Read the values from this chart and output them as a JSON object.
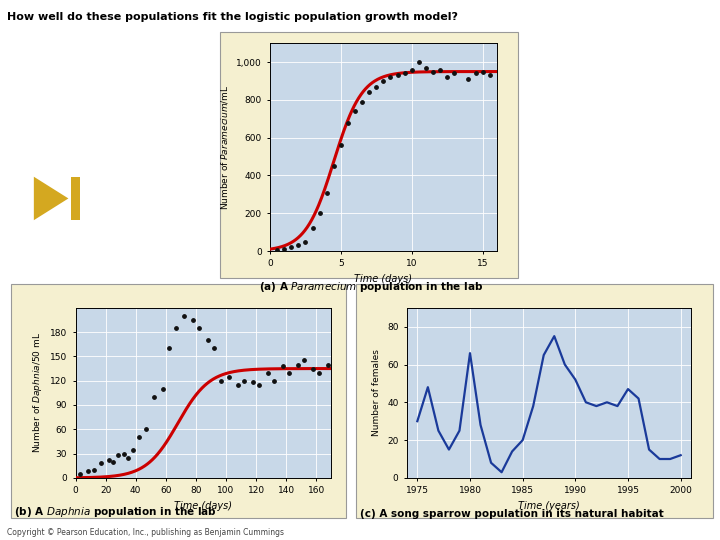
{
  "title": "How well do these populations fit the logistic population growth model?",
  "copyright": "Copyright © Pearson Education, Inc., publishing as Benjamin Cummings",
  "panel_a": {
    "caption_prefix": "(a) A ",
    "caption_italic": "Paramecium",
    "caption_suffix": " population in the lab",
    "xlabel": "Time (days)",
    "ylabel_prefix": "Number of ",
    "ylabel_italic": "Paramecium",
    "ylabel_suffix": "/mL",
    "xlim": [
      0,
      16
    ],
    "ylim": [
      0,
      1100
    ],
    "xticks": [
      0,
      5,
      10,
      15
    ],
    "yticks": [
      0,
      200,
      400,
      600,
      800,
      1000
    ],
    "yticklabels": [
      "0",
      "200",
      "400",
      "600",
      "800",
      "1,000"
    ],
    "K": 950,
    "r": 1.0,
    "t0": 4.5,
    "scatter_x": [
      0.5,
      1.0,
      1.5,
      2.0,
      2.5,
      3.0,
      3.5,
      4.0,
      4.5,
      5.0,
      5.5,
      6.0,
      6.5,
      7.0,
      7.5,
      8.0,
      8.5,
      9.0,
      9.5,
      10.0,
      10.5,
      11.0,
      11.5,
      12.0,
      12.5,
      13.0,
      14.0,
      14.5,
      15.0,
      15.5
    ],
    "scatter_y": [
      5,
      10,
      20,
      30,
      50,
      120,
      200,
      310,
      450,
      560,
      680,
      740,
      790,
      840,
      870,
      900,
      920,
      930,
      940,
      960,
      1000,
      970,
      950,
      960,
      920,
      940,
      910,
      940,
      950,
      930
    ],
    "plot_bg_color": "#c8d8e8",
    "outer_bg_color": "#f5f0d0",
    "curve_color": "#cc0000",
    "dot_color": "#111111"
  },
  "panel_b": {
    "caption_prefix": "(b) A ",
    "caption_italic": "Daphnia",
    "caption_suffix": " population in the lab",
    "xlabel": "Time (days)",
    "ylabel_prefix": "Number of ",
    "ylabel_italic": "Daphnia",
    "ylabel_suffix": "/50 mL",
    "xlim": [
      0,
      170
    ],
    "ylim": [
      0,
      210
    ],
    "xticks": [
      0,
      20,
      40,
      60,
      80,
      100,
      120,
      140,
      160
    ],
    "yticks": [
      0,
      30,
      60,
      90,
      120,
      150,
      180
    ],
    "K": 135,
    "r": 0.095,
    "t0": 68,
    "scatter_x": [
      3,
      8,
      12,
      17,
      22,
      25,
      28,
      32,
      35,
      38,
      42,
      47,
      52,
      58,
      62,
      67,
      72,
      78,
      82,
      88,
      92,
      97,
      102,
      108,
      112,
      118,
      122,
      128,
      132,
      138,
      142,
      148,
      152,
      158,
      162,
      168
    ],
    "scatter_y": [
      5,
      8,
      10,
      18,
      22,
      20,
      28,
      30,
      25,
      35,
      50,
      60,
      100,
      110,
      160,
      185,
      200,
      195,
      185,
      170,
      160,
      120,
      125,
      115,
      120,
      118,
      115,
      130,
      120,
      138,
      130,
      140,
      145,
      135,
      130,
      140
    ],
    "plot_bg_color": "#c8d8e8",
    "outer_bg_color": "#f5f0d0",
    "curve_color": "#cc0000",
    "dot_color": "#111111"
  },
  "panel_c": {
    "caption": "(c) A song sparrow population in its natural habitat",
    "xlabel": "Time (years)",
    "ylabel": "Number of females",
    "xlim": [
      1974,
      2001
    ],
    "ylim": [
      0,
      90
    ],
    "xticks": [
      1975,
      1980,
      1985,
      1990,
      1995,
      2000
    ],
    "yticks": [
      0,
      20,
      40,
      60,
      80
    ],
    "line_x": [
      1975,
      1976,
      1977,
      1978,
      1979,
      1980,
      1981,
      1982,
      1983,
      1984,
      1985,
      1986,
      1987,
      1988,
      1989,
      1990,
      1991,
      1992,
      1993,
      1994,
      1995,
      1996,
      1997,
      1998,
      1999,
      2000
    ],
    "line_y": [
      30,
      48,
      25,
      15,
      25,
      66,
      28,
      8,
      3,
      14,
      20,
      38,
      65,
      75,
      60,
      52,
      40,
      38,
      40,
      38,
      47,
      42,
      15,
      10,
      10,
      12
    ],
    "plot_bg_color": "#c8d8e8",
    "outer_bg_color": "#f5f0d0",
    "line_color": "#1a3a9a"
  },
  "btn_bg": "#2a9090",
  "btn_triangle": "#d4a820",
  "btn_bar": "#d4a820"
}
